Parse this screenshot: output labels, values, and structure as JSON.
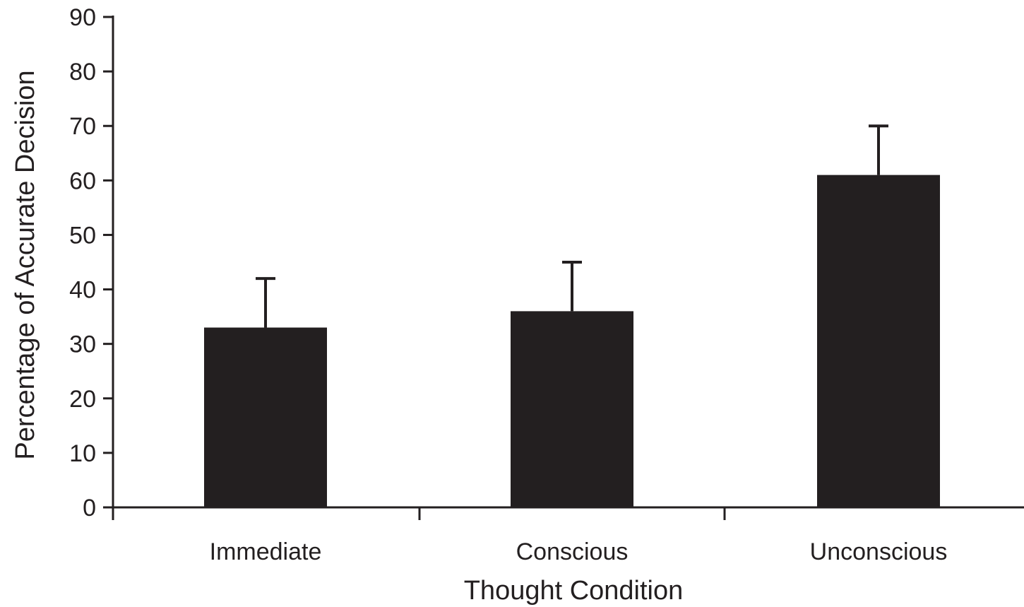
{
  "chart_data": {
    "type": "bar",
    "title": "",
    "xlabel": "Thought Condition",
    "ylabel": "Percentage of Accurate Decision",
    "categories": [
      "Immediate",
      "Conscious",
      "Unconscious"
    ],
    "values": [
      33,
      36,
      61
    ],
    "error_upper": [
      42,
      45,
      70
    ],
    "ylim": [
      0,
      90
    ],
    "yticks": [
      0,
      10,
      20,
      30,
      40,
      50,
      60,
      70,
      80,
      90
    ],
    "grid": false,
    "legend": "none",
    "colors": {
      "bar": "#231f20",
      "axis": "#231f20",
      "text": "#231f20",
      "background": "#ffffff"
    }
  }
}
